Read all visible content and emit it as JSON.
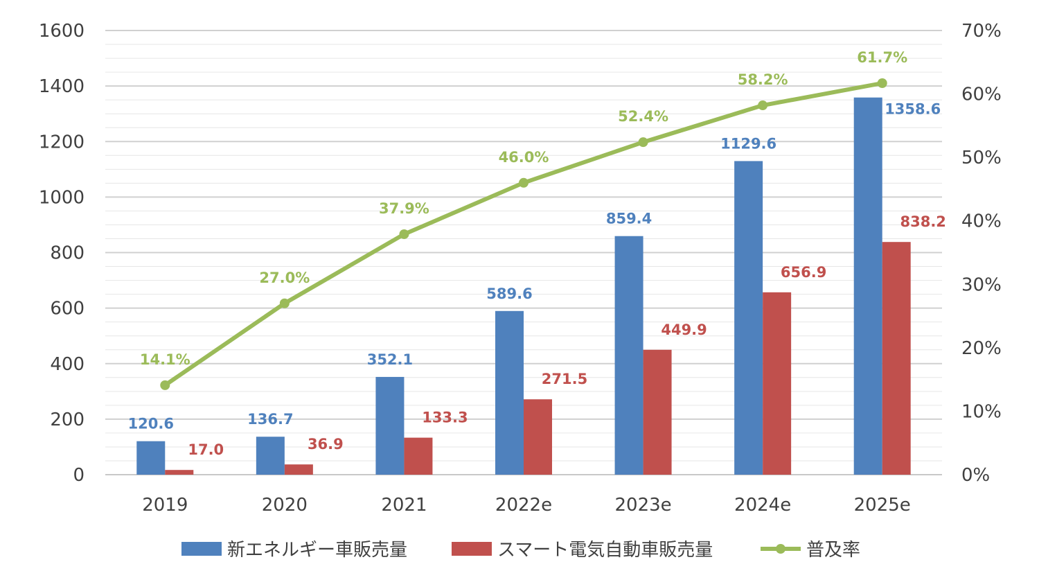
{
  "chart_data": {
    "type": "bar",
    "categories": [
      "2019",
      "2020",
      "2021",
      "2022e",
      "2023e",
      "2024e",
      "2025e"
    ],
    "series": [
      {
        "name": "新エネルギー車販売量",
        "type": "bar",
        "axis": "left",
        "color": "#4F81BD",
        "values": [
          120.6,
          136.7,
          352.1,
          589.6,
          859.4,
          1129.6,
          1358.6
        ],
        "labels": [
          "120.6",
          "136.7",
          "352.1",
          "589.6",
          "859.4",
          "1129.6",
          "1358.6"
        ]
      },
      {
        "name": "スマート電気自動車販売量",
        "type": "bar",
        "axis": "left",
        "color": "#C0504D",
        "values": [
          17.0,
          36.9,
          133.3,
          271.5,
          449.9,
          656.9,
          838.2
        ],
        "labels": [
          "17.0",
          "36.9",
          "133.3",
          "271.5",
          "449.9",
          "656.9",
          "838.2"
        ]
      },
      {
        "name": "普及率",
        "type": "line",
        "axis": "right",
        "color": "#9BBB59",
        "values": [
          14.1,
          27.0,
          37.9,
          46.0,
          52.4,
          58.2,
          61.7
        ],
        "labels": [
          "14.1%",
          "27.0%",
          "37.9%",
          "46.0%",
          "52.4%",
          "58.2%",
          "61.7%"
        ]
      }
    ],
    "y_left": {
      "min": 0,
      "max": 1600,
      "ticks": [
        "0",
        "200",
        "400",
        "600",
        "800",
        "1000",
        "1200",
        "1400",
        "1600"
      ]
    },
    "y_right": {
      "min": 0,
      "max": 70,
      "ticks": [
        "0%",
        "10%",
        "20%",
        "30%",
        "40%",
        "50%",
        "60%",
        "70%"
      ]
    },
    "grid": true,
    "legend": "bottom"
  }
}
